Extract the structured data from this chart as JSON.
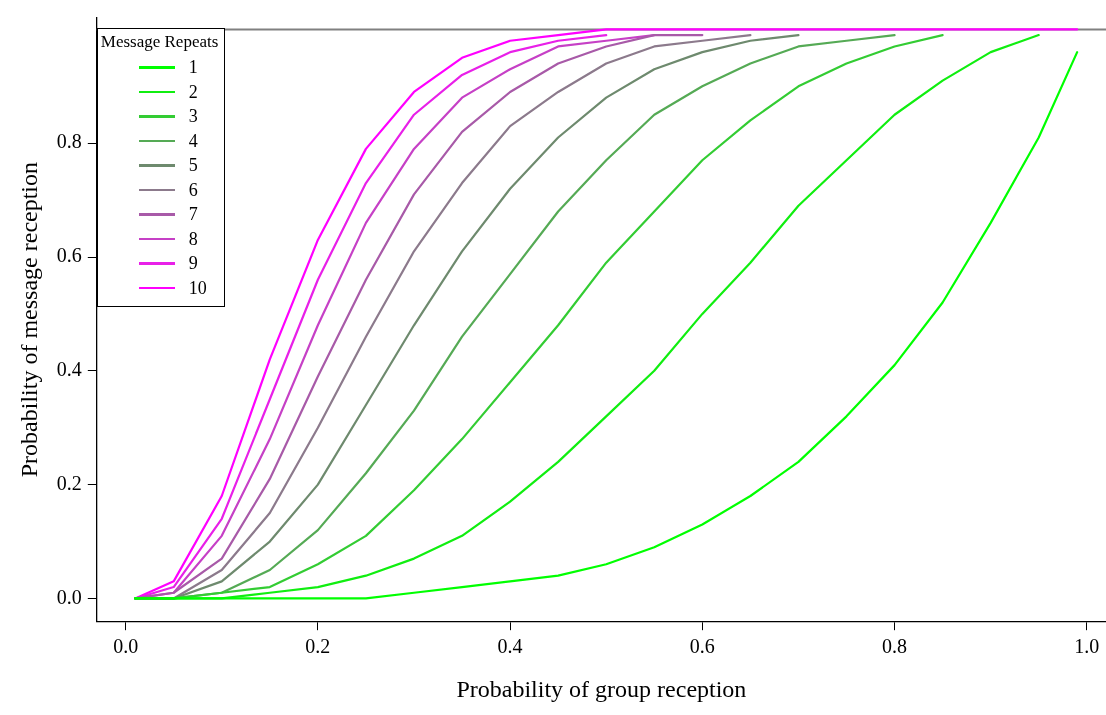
{
  "chart_data": {
    "type": "line",
    "xlabel": "Probability of group reception",
    "ylabel": "Probability of message reception",
    "legend_title": "Message Repeats",
    "legend": "top left",
    "grid": false,
    "marker": "none",
    "line_style": "solid",
    "x": [
      0.01,
      0.05,
      0.1,
      0.15,
      0.2,
      0.25,
      0.3,
      0.35,
      0.4,
      0.45,
      0.5,
      0.55,
      0.6,
      0.65,
      0.7,
      0.75,
      0.8,
      0.85,
      0.9,
      0.95,
      0.99
    ],
    "xlim": [
      -0.03,
      1.02
    ],
    "ylim": [
      -0.04,
      1.02
    ],
    "xticks": [
      {
        "value": 0,
        "label": "0.0"
      },
      {
        "value": 0.2,
        "label": "0.2"
      },
      {
        "value": 0.4,
        "label": "0.4"
      },
      {
        "value": 0.6,
        "label": "0.6"
      },
      {
        "value": 0.8,
        "label": "0.8"
      },
      {
        "value": 1,
        "label": "1.0"
      }
    ],
    "yticks": [
      {
        "value": 0,
        "label": "0.0"
      },
      {
        "value": 0.2,
        "label": "0.2"
      },
      {
        "value": 0.4,
        "label": "0.4"
      },
      {
        "value": 0.6,
        "label": "0.6"
      },
      {
        "value": 0.8,
        "label": "0.8"
      }
    ],
    "ref_lines": [
      {
        "axis": "y",
        "value": 1,
        "color": "#808080"
      }
    ],
    "series": [
      {
        "name": "1",
        "color": "#00ff00",
        "values": [
          0,
          0,
          0,
          0,
          0,
          0,
          0.01,
          0.02,
          0.03,
          0.04,
          0.06,
          0.09,
          0.13,
          0.18,
          0.24,
          0.32,
          0.41,
          0.52,
          0.66,
          0.81,
          0.96
        ]
      },
      {
        "name": "2",
        "color": "#10ee10",
        "values": [
          0,
          0,
          0,
          0.01,
          0.02,
          0.04,
          0.07,
          0.11,
          0.17,
          0.24,
          0.32,
          0.4,
          0.5,
          0.59,
          0.69,
          0.77,
          0.85,
          0.91,
          0.96,
          0.99,
          null
        ]
      },
      {
        "name": "3",
        "color": "#33cc33",
        "values": [
          0,
          0,
          0.01,
          0.02,
          0.06,
          0.11,
          0.19,
          0.28,
          0.38,
          0.48,
          0.59,
          0.68,
          0.77,
          0.84,
          0.9,
          0.94,
          0.97,
          0.99,
          null,
          null,
          null
        ]
      },
      {
        "name": "4",
        "color": "#55aa55",
        "values": [
          0,
          0,
          0.01,
          0.05,
          0.12,
          0.22,
          0.33,
          0.46,
          0.57,
          0.68,
          0.77,
          0.85,
          0.9,
          0.94,
          0.97,
          0.98,
          0.99,
          null,
          null,
          null,
          null
        ]
      },
      {
        "name": "5",
        "color": "#6e8a6e",
        "values": [
          0,
          0,
          0.03,
          0.1,
          0.2,
          0.34,
          0.48,
          0.61,
          0.72,
          0.81,
          0.88,
          0.93,
          0.96,
          0.98,
          0.99,
          null,
          null,
          null,
          null,
          null,
          null
        ]
      },
      {
        "name": "6",
        "color": "#8c7a8c",
        "values": [
          0,
          0,
          0.05,
          0.15,
          0.3,
          0.46,
          0.61,
          0.73,
          0.83,
          0.89,
          0.94,
          0.97,
          0.98,
          0.99,
          null,
          null,
          null,
          null,
          null,
          null,
          null
        ]
      },
      {
        "name": "7",
        "color": "#a85aa8",
        "values": [
          0,
          0.01,
          0.07,
          0.21,
          0.39,
          0.56,
          0.71,
          0.82,
          0.89,
          0.94,
          0.97,
          0.99,
          0.99,
          null,
          null,
          null,
          null,
          null,
          null,
          null,
          null
        ]
      },
      {
        "name": "8",
        "color": "#c640c6",
        "values": [
          0,
          0.01,
          0.11,
          0.28,
          0.48,
          0.66,
          0.79,
          0.88,
          0.93,
          0.97,
          0.98,
          0.99,
          null,
          null,
          null,
          null,
          null,
          null,
          null,
          null,
          null
        ]
      },
      {
        "name": "9",
        "color": "#e820e8",
        "values": [
          0,
          0.02,
          0.14,
          0.35,
          0.56,
          0.73,
          0.85,
          0.92,
          0.96,
          0.98,
          0.99,
          null,
          null,
          null,
          null,
          null,
          null,
          null,
          null,
          null,
          null
        ]
      },
      {
        "name": "10",
        "color": "#ff00ff",
        "values": [
          0,
          0.03,
          0.18,
          0.42,
          0.63,
          0.79,
          0.89,
          0.95,
          0.98,
          0.99,
          1,
          1,
          1,
          1,
          1,
          1,
          1,
          1,
          1,
          1,
          1
        ]
      }
    ]
  }
}
